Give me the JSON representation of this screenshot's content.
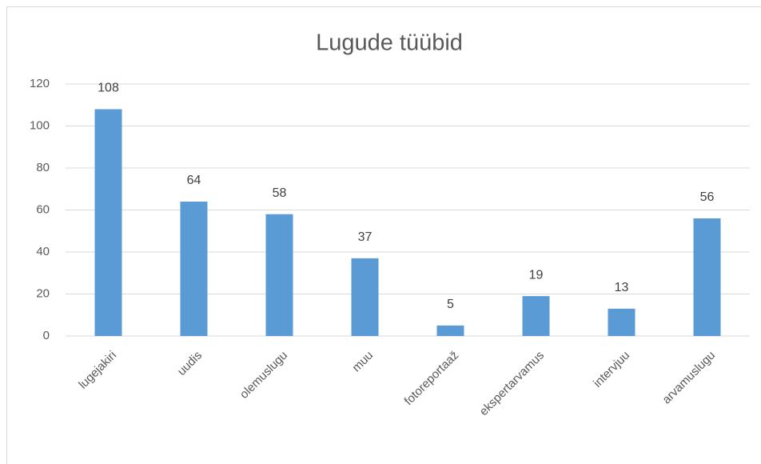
{
  "chart_data": {
    "type": "bar",
    "title": "Lugude tüübid",
    "categories": [
      "lugejakiri",
      "uudis",
      "olemuslugu",
      "muu",
      "fotoreportaaž",
      "ekspertarvamus",
      "intervjuu",
      "arvamuslugu"
    ],
    "values": [
      108,
      64,
      58,
      37,
      5,
      19,
      13,
      56
    ],
    "color": "#5b9bd5",
    "ylim": [
      0,
      120
    ],
    "yticks": [
      0,
      20,
      40,
      60,
      80,
      100,
      120
    ],
    "grid": true
  }
}
